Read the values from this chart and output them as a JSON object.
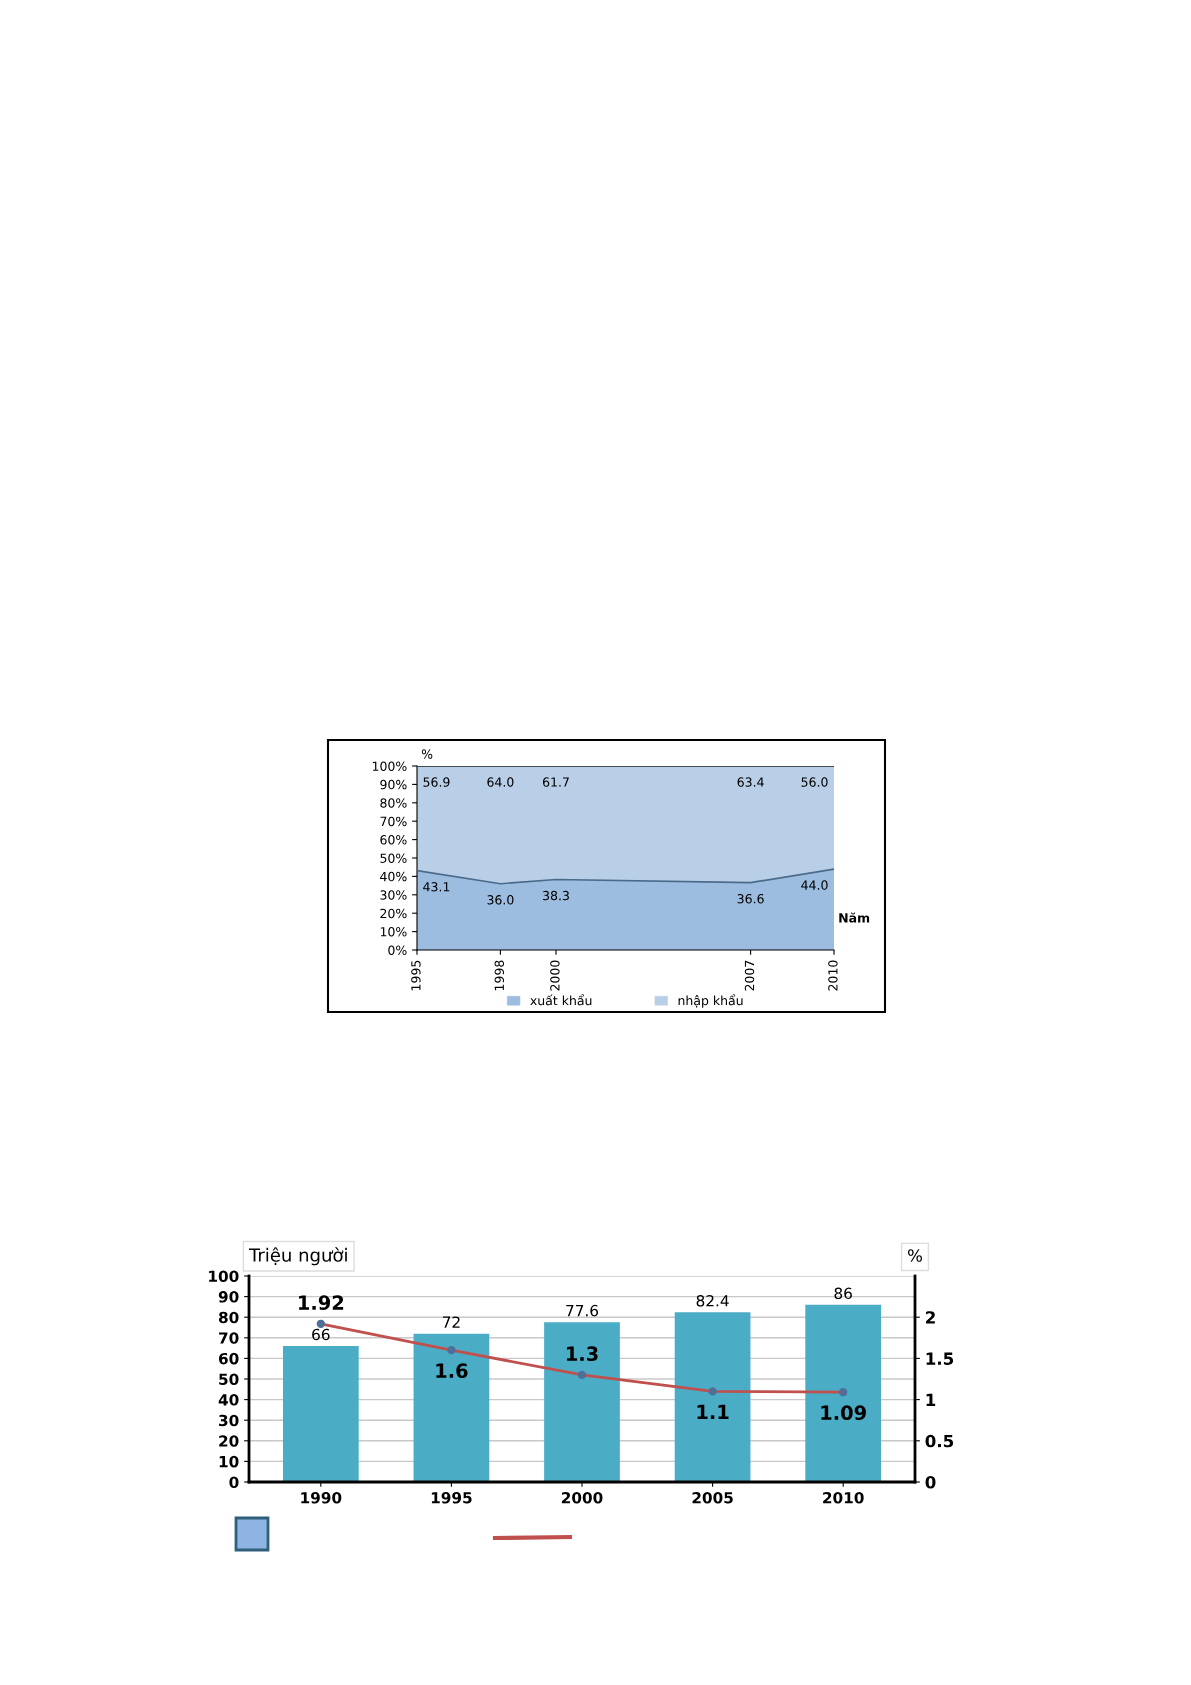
{
  "chart_data": [
    {
      "type": "area",
      "stacked": true,
      "xlabel": "Năm",
      "ylabel": "%",
      "x": [
        1995,
        1998,
        2000,
        2007,
        2010
      ],
      "xlim": [
        1995,
        2010
      ],
      "xticks": [
        1995,
        1998,
        2000,
        2007,
        2010
      ],
      "ylim": [
        0,
        100
      ],
      "yticks": [
        {
          "value": 0,
          "label": "0%"
        },
        {
          "value": 10,
          "label": "10%"
        },
        {
          "value": 20,
          "label": "20%"
        },
        {
          "value": 30,
          "label": "30%"
        },
        {
          "value": 40,
          "label": "40%"
        },
        {
          "value": 50,
          "label": "50%"
        },
        {
          "value": 60,
          "label": "60%"
        },
        {
          "value": 70,
          "label": "70%"
        },
        {
          "value": 80,
          "label": "80%"
        },
        {
          "value": 90,
          "label": "90%"
        },
        {
          "value": 100,
          "label": "100%"
        }
      ],
      "series": [
        {
          "name": "xuất khẩu",
          "color": "#9dbde0",
          "values": [
            43.1,
            36.0,
            38.3,
            36.6,
            44.0
          ],
          "value_labels": [
            "43.1",
            "36.0",
            "38.3",
            "36.6",
            "44.0"
          ]
        },
        {
          "name": "nhập khẩu",
          "color": "#b9cfe8",
          "values": [
            56.9,
            64.0,
            61.7,
            63.4,
            56.0
          ],
          "value_labels": [
            "56.9",
            "64.0",
            "61.7",
            "63.4",
            "56.0"
          ]
        }
      ],
      "legend": "bottom",
      "grid": false
    },
    {
      "type": "bar",
      "categories": [
        "1990",
        "1995",
        "2000",
        "2005",
        "2010"
      ],
      "ylabel": "Triệu người",
      "y2label": "%",
      "ylim": [
        0,
        100
      ],
      "yticks": [
        0,
        10,
        20,
        30,
        40,
        50,
        60,
        70,
        80,
        90,
        100
      ],
      "y2lim": [
        0,
        2.5
      ],
      "y2ticks": [
        0,
        0.5,
        1,
        1.5,
        2
      ],
      "series": [
        {
          "color": "#4bacc6",
          "values": [
            66,
            72,
            77.6,
            82.4,
            86
          ]
        },
        {
          "type": "line",
          "axis": "y2",
          "color": "#c0504d",
          "marker": "circle",
          "values": [
            1.92,
            1.6,
            1.3,
            1.1,
            1.09
          ]
        }
      ],
      "data_labels": true,
      "grid": "y"
    }
  ]
}
